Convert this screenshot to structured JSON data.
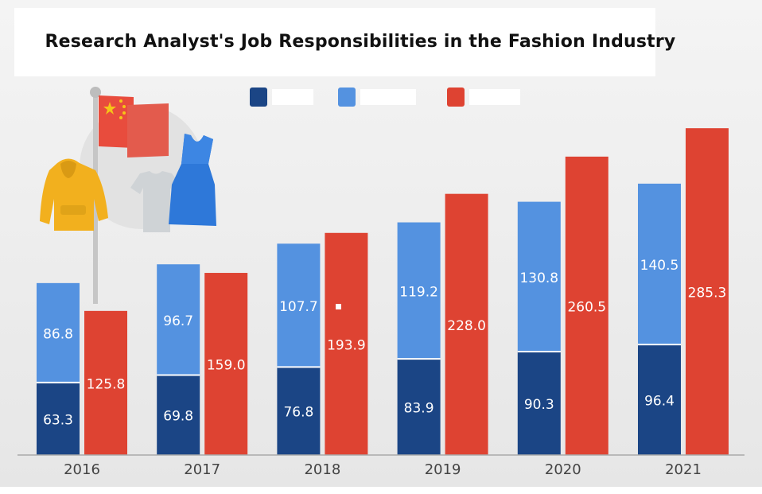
{
  "chart_data": {
    "type": "bar",
    "title": "Research Analyst's Job Responsibilities in the Fashion Industry",
    "categories": [
      "2016",
      "2017",
      "2018",
      "2019",
      "2020",
      "2021"
    ],
    "series": [
      {
        "values": [
          63.3,
          69.8,
          76.8,
          83.9,
          90.3,
          96.4
        ],
        "color": "#1b4585",
        "stack": "a"
      },
      {
        "values": [
          86.8,
          96.7,
          107.7,
          119.2,
          130.8,
          140.5
        ],
        "color": "#5492e0",
        "stack": "a"
      },
      {
        "values": [
          125.8,
          159.0,
          193.9,
          228.0,
          260.5,
          285.3
        ],
        "color": "#de4332",
        "stack": "b"
      }
    ],
    "value_labels": {
      "s0": [
        "63.3",
        "69.8",
        "76.8",
        "83.9",
        "90.3",
        "96.4"
      ],
      "s1": [
        "86.8",
        "96.7",
        "107.7",
        "119.2",
        "130.8",
        "140.5"
      ],
      "s2": [
        "125.8",
        "159.0",
        "193.9",
        "228.0",
        "260.5",
        "285.3"
      ]
    },
    "ylim": [
      0,
      300
    ],
    "grid": false,
    "legend_position": "top-center",
    "legend_labels_hidden": true
  },
  "illustration": {
    "icons": [
      "flag-icon",
      "hoodie-icon",
      "tshirt-icon",
      "dress-icon"
    ],
    "colors": {
      "flag": "#e84c3d",
      "star": "#f5c518",
      "hoodie": "#f2b01e",
      "tshirt": "#cfd3d6",
      "dress": "#2e78d9"
    }
  }
}
